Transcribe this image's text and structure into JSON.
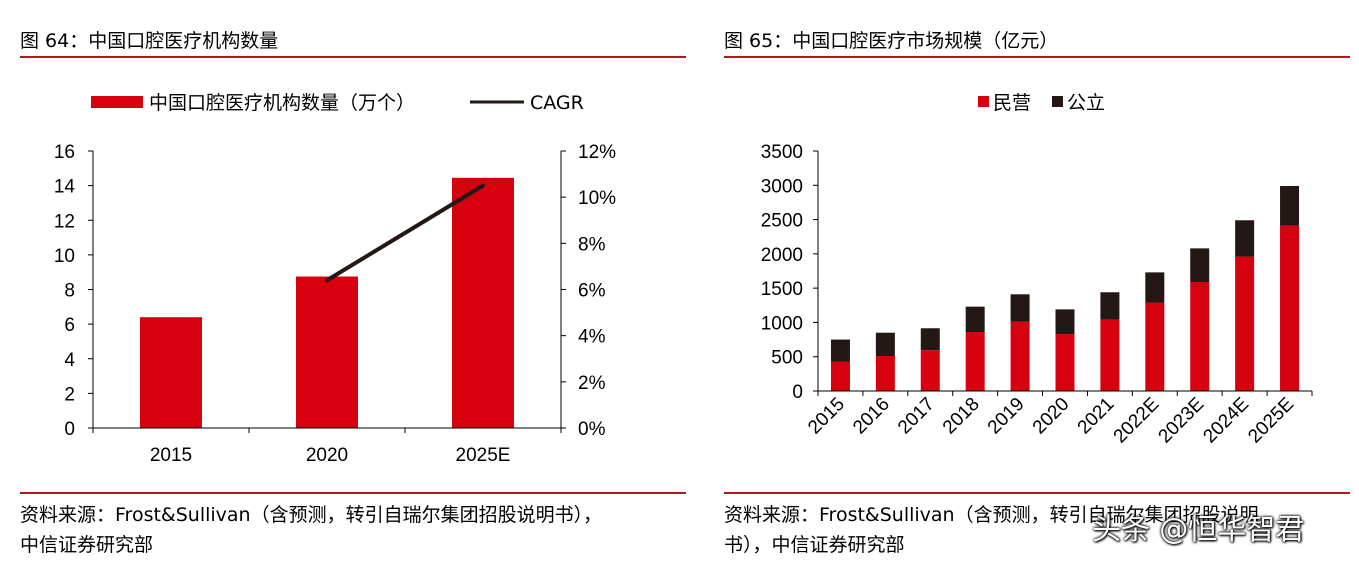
{
  "left": {
    "figure_title": "图 64：中国口腔医疗机构数量",
    "source_line1": "资料来源：Frost&Sullivan（含预测，转引自瑞尔集团招股说明书），",
    "source_line2": "中信证券研究部"
  },
  "right": {
    "figure_title": "图 65：中国口腔医疗市场规模（亿元）",
    "source_line1": "资料来源：Frost&Sullivan（含预测，转引自瑞尔集团招股说明",
    "source_line2": "书），中信证券研究部"
  },
  "watermark": "头条 @恒华智君",
  "colors": {
    "accent_red": "#d7000f",
    "rule_red": "#b8141b",
    "dark": "#231815"
  },
  "chart_data": [
    {
      "type": "bar",
      "title": "中国口腔医疗机构数量",
      "categories": [
        "2015",
        "2020",
        "2025E"
      ],
      "series": [
        {
          "name": "中国口腔医疗机构数量（万个）",
          "kind": "bar",
          "axis": "left",
          "color": "#d7000f",
          "values": [
            6.4,
            8.75,
            14.45
          ]
        },
        {
          "name": "CAGR",
          "kind": "line",
          "axis": "right",
          "color": "#231815",
          "points": [
            {
              "x": "2020",
              "y": 6.4
            },
            {
              "x": "2025E",
              "y": 10.5
            }
          ]
        }
      ],
      "y_left": {
        "min": 0,
        "max": 16,
        "step": 2,
        "ticks": [
          "0",
          "2",
          "4",
          "6",
          "8",
          "10",
          "12",
          "14",
          "16"
        ]
      },
      "y_right": {
        "min": 0,
        "max": 12,
        "step": 2,
        "ticks": [
          "0%",
          "2%",
          "4%",
          "6%",
          "8%",
          "10%",
          "12%"
        ]
      },
      "legend_position": "top",
      "grid": false
    },
    {
      "type": "bar",
      "stacked": true,
      "title": "中国口腔医疗市场规模（亿元）",
      "categories": [
        "2015",
        "2016",
        "2017",
        "2018",
        "2019",
        "2020",
        "2021",
        "2022E",
        "2023E",
        "2024E",
        "2025E"
      ],
      "series": [
        {
          "name": "民营",
          "color": "#d7000f",
          "values": [
            430,
            510,
            595,
            860,
            1010,
            830,
            1040,
            1290,
            1590,
            1960,
            2410
          ]
        },
        {
          "name": "公立",
          "color": "#231815",
          "values": [
            320,
            340,
            320,
            370,
            400,
            360,
            400,
            440,
            490,
            530,
            580
          ]
        }
      ],
      "y": {
        "min": 0,
        "max": 3500,
        "step": 500,
        "ticks": [
          "0",
          "500",
          "1000",
          "1500",
          "2000",
          "2500",
          "3000",
          "3500"
        ]
      },
      "legend_position": "top",
      "grid": false
    }
  ]
}
